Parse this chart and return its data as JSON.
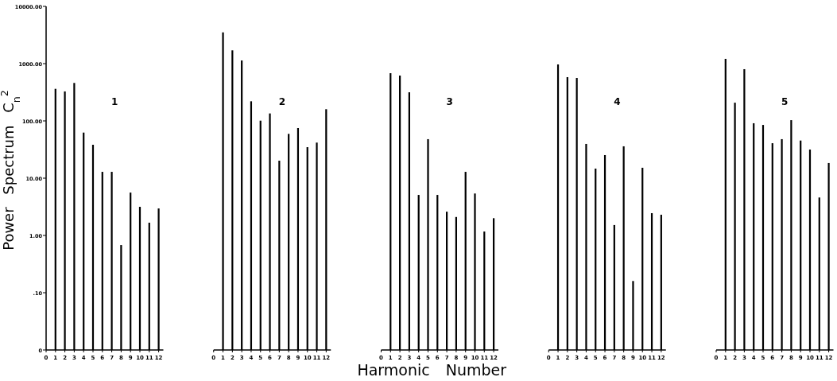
{
  "chart_data": [
    {
      "type": "bar",
      "x": [
        1,
        2,
        3,
        4,
        5,
        6,
        7,
        8,
        9,
        10,
        11,
        12
      ],
      "values": [
        363,
        327,
        460,
        62.5,
        38.3,
        12.9,
        12.9,
        0.68,
        5.6,
        3.16,
        1.67,
        2.96
      ],
      "color": "#000000",
      "xlim": [
        0,
        12.5
      ],
      "xticks": [
        0,
        1,
        2,
        3,
        4,
        5,
        6,
        7,
        8,
        9,
        10,
        11,
        12
      ],
      "ylim": [
        0.01,
        10000
      ],
      "yticks": [
        {
          "value": 0.01,
          "label": "0"
        },
        {
          "value": 0.1,
          "label": ".10"
        },
        {
          "value": 1,
          "label": "1.00"
        },
        {
          "value": 10,
          "label": "10.00"
        },
        {
          "value": 100,
          "label": "100.00"
        },
        {
          "value": 1000,
          "label": "1000.00"
        },
        {
          "value": 10000,
          "label": "10000.00"
        }
      ],
      "log": true,
      "ylabel": "Power Spectrum C$_{n}$$^{2}$",
      "annotations": [
        "1"
      ]
    },
    {
      "type": "bar",
      "x": [
        1,
        2,
        3,
        4,
        5,
        6,
        7,
        8,
        9,
        10,
        11,
        12
      ],
      "values": [
        3515,
        1706,
        1136,
        220,
        101,
        135,
        20.2,
        59.4,
        75,
        34.8,
        41.8,
        160
      ],
      "color": "#000000",
      "xlim": [
        0,
        12.5
      ],
      "xticks": [
        0,
        1,
        2,
        3,
        4,
        5,
        6,
        7,
        8,
        9,
        10,
        11,
        12
      ],
      "ylim": [
        0.01,
        10000
      ],
      "log": true,
      "tick_labels": "x",
      "annotations": [
        "2"
      ]
    },
    {
      "type": "bar",
      "x": [
        1,
        2,
        3,
        4,
        5,
        6,
        7,
        8,
        9,
        10,
        11,
        12
      ],
      "values": [
        681,
        619,
        316,
        5.1,
        48,
        5.1,
        2.6,
        2.1,
        12.9,
        5.4,
        1.17,
        2.0
      ],
      "color": "#000000",
      "xlim": [
        0,
        12.5
      ],
      "xticks": [
        0,
        1,
        2,
        3,
        4,
        5,
        6,
        7,
        8,
        9,
        10,
        11,
        12
      ],
      "ylim": [
        0.01,
        10000
      ],
      "log": true,
      "tick_labels": "x",
      "xlabel": "Harmonic Number",
      "annotations": [
        "3"
      ]
    },
    {
      "type": "bar",
      "x": [
        1,
        2,
        3,
        4,
        5,
        6,
        7,
        8,
        9,
        10,
        11,
        12
      ],
      "values": [
        968,
        581,
        562,
        39.6,
        14.7,
        25.3,
        1.52,
        36,
        0.16,
        15.2,
        2.45,
        2.3
      ],
      "color": "#000000",
      "xlim": [
        0,
        12.5
      ],
      "xticks": [
        0,
        1,
        2,
        3,
        4,
        5,
        6,
        7,
        8,
        9,
        10,
        11,
        12
      ],
      "ylim": [
        0.01,
        10000
      ],
      "log": true,
      "tick_labels": "x",
      "annotations": [
        "4"
      ]
    },
    {
      "type": "bar",
      "x": [
        1,
        2,
        3,
        4,
        5,
        6,
        7,
        8,
        9,
        10,
        11,
        12
      ],
      "values": [
        1212,
        208,
        800,
        91,
        85,
        40.8,
        48,
        103,
        45.4,
        31.6,
        4.6,
        18.4
      ],
      "color": "#000000",
      "xlim": [
        0,
        12.5
      ],
      "xticks": [
        0,
        1,
        2,
        3,
        4,
        5,
        6,
        7,
        8,
        9,
        10,
        11,
        12
      ],
      "ylim": [
        0.01,
        10000
      ],
      "log": true,
      "tick_labels": "x",
      "annotations": [
        "5"
      ]
    }
  ]
}
